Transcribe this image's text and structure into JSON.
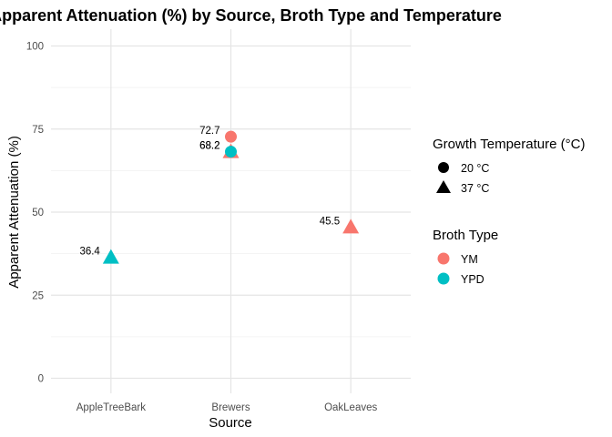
{
  "chart_data": {
    "type": "scatter",
    "title": "Apparent Attenuation (%) by Source, Broth Type and Temperature",
    "xlabel": "Source",
    "ylabel": "Apparent Attenuation (%)",
    "categories": [
      "AppleTreeBark",
      "Brewers",
      "OakLeaves"
    ],
    "ylim": [
      0,
      100
    ],
    "yticks": [
      0,
      25,
      50,
      75,
      100
    ],
    "grid": true,
    "legend_position": "right",
    "points": [
      {
        "x": "AppleTreeBark",
        "y": 36.4,
        "broth": "YPD",
        "temp": "37 °C",
        "label": "36.4"
      },
      {
        "x": "Brewers",
        "y": 72.7,
        "broth": "YM",
        "temp": "20 °C",
        "label": "72.7"
      },
      {
        "x": "Brewers",
        "y": 68.2,
        "broth": "YM",
        "temp": "37 °C",
        "label": "68.2"
      },
      {
        "x": "Brewers",
        "y": 68.2,
        "broth": "YPD",
        "temp": "20 °C",
        "label": "68.2"
      },
      {
        "x": "OakLeaves",
        "y": 45.5,
        "broth": "YM",
        "temp": "37 °C",
        "label": "45.5"
      }
    ],
    "legend": {
      "shape_title": "Growth Temperature (°C)",
      "shape_items": [
        {
          "label": "20 °C",
          "shape": "circle"
        },
        {
          "label": "37 °C",
          "shape": "triangle"
        }
      ],
      "color_title": "Broth Type",
      "color_items": [
        {
          "label": "YM",
          "color": "#F8766D"
        },
        {
          "label": "YPD",
          "color": "#00BFC4"
        }
      ]
    }
  }
}
